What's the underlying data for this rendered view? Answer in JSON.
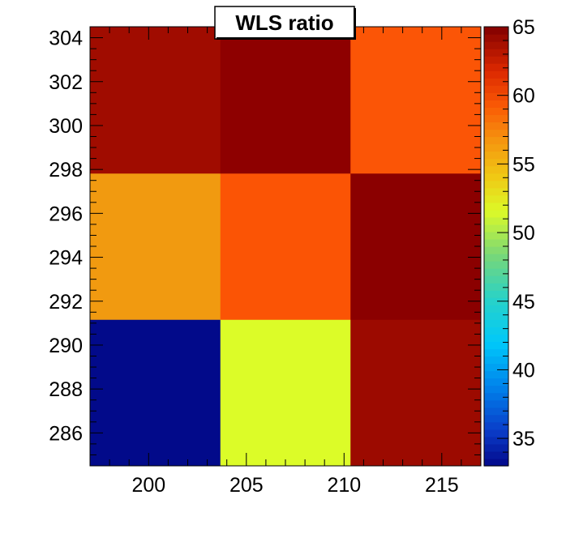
{
  "chart_data": {
    "type": "heatmap",
    "title": "WLS ratio",
    "xlabel": "",
    "ylabel": "",
    "x_edges": [
      197,
      203.67,
      210.33,
      217
    ],
    "y_edges": [
      284.5,
      291.17,
      297.83,
      304.5
    ],
    "xlim": [
      197,
      217
    ],
    "ylim": [
      284.5,
      304.5
    ],
    "x_ticks": [
      200,
      205,
      210,
      215
    ],
    "y_ticks": [
      286,
      288,
      290,
      292,
      294,
      296,
      298,
      300,
      302,
      304
    ],
    "z_range": [
      33,
      65
    ],
    "z_ticks": [
      35,
      40,
      45,
      50,
      55,
      60,
      65
    ],
    "colormap": "rainbow",
    "cells": [
      {
        "x_index": 0,
        "y_index": 0,
        "value": 33.5,
        "color": "#020a8a"
      },
      {
        "x_index": 1,
        "y_index": 0,
        "value": 52.5,
        "color": "#dcfc28"
      },
      {
        "x_index": 2,
        "y_index": 0,
        "value": 63.5,
        "color": "#9c0a00"
      },
      {
        "x_index": 0,
        "y_index": 1,
        "value": 56.5,
        "color": "#f19a10"
      },
      {
        "x_index": 1,
        "y_index": 1,
        "value": 59.0,
        "color": "#fb5405"
      },
      {
        "x_index": 2,
        "y_index": 1,
        "value": 64.5,
        "color": "#8b0000"
      },
      {
        "x_index": 0,
        "y_index": 2,
        "value": 63.5,
        "color": "#a00c00"
      },
      {
        "x_index": 1,
        "y_index": 2,
        "value": 64.5,
        "color": "#8e0000"
      },
      {
        "x_index": 2,
        "y_index": 2,
        "value": 59.0,
        "color": "#fb5506"
      }
    ],
    "grid": false,
    "legend": "colorbar-right"
  }
}
